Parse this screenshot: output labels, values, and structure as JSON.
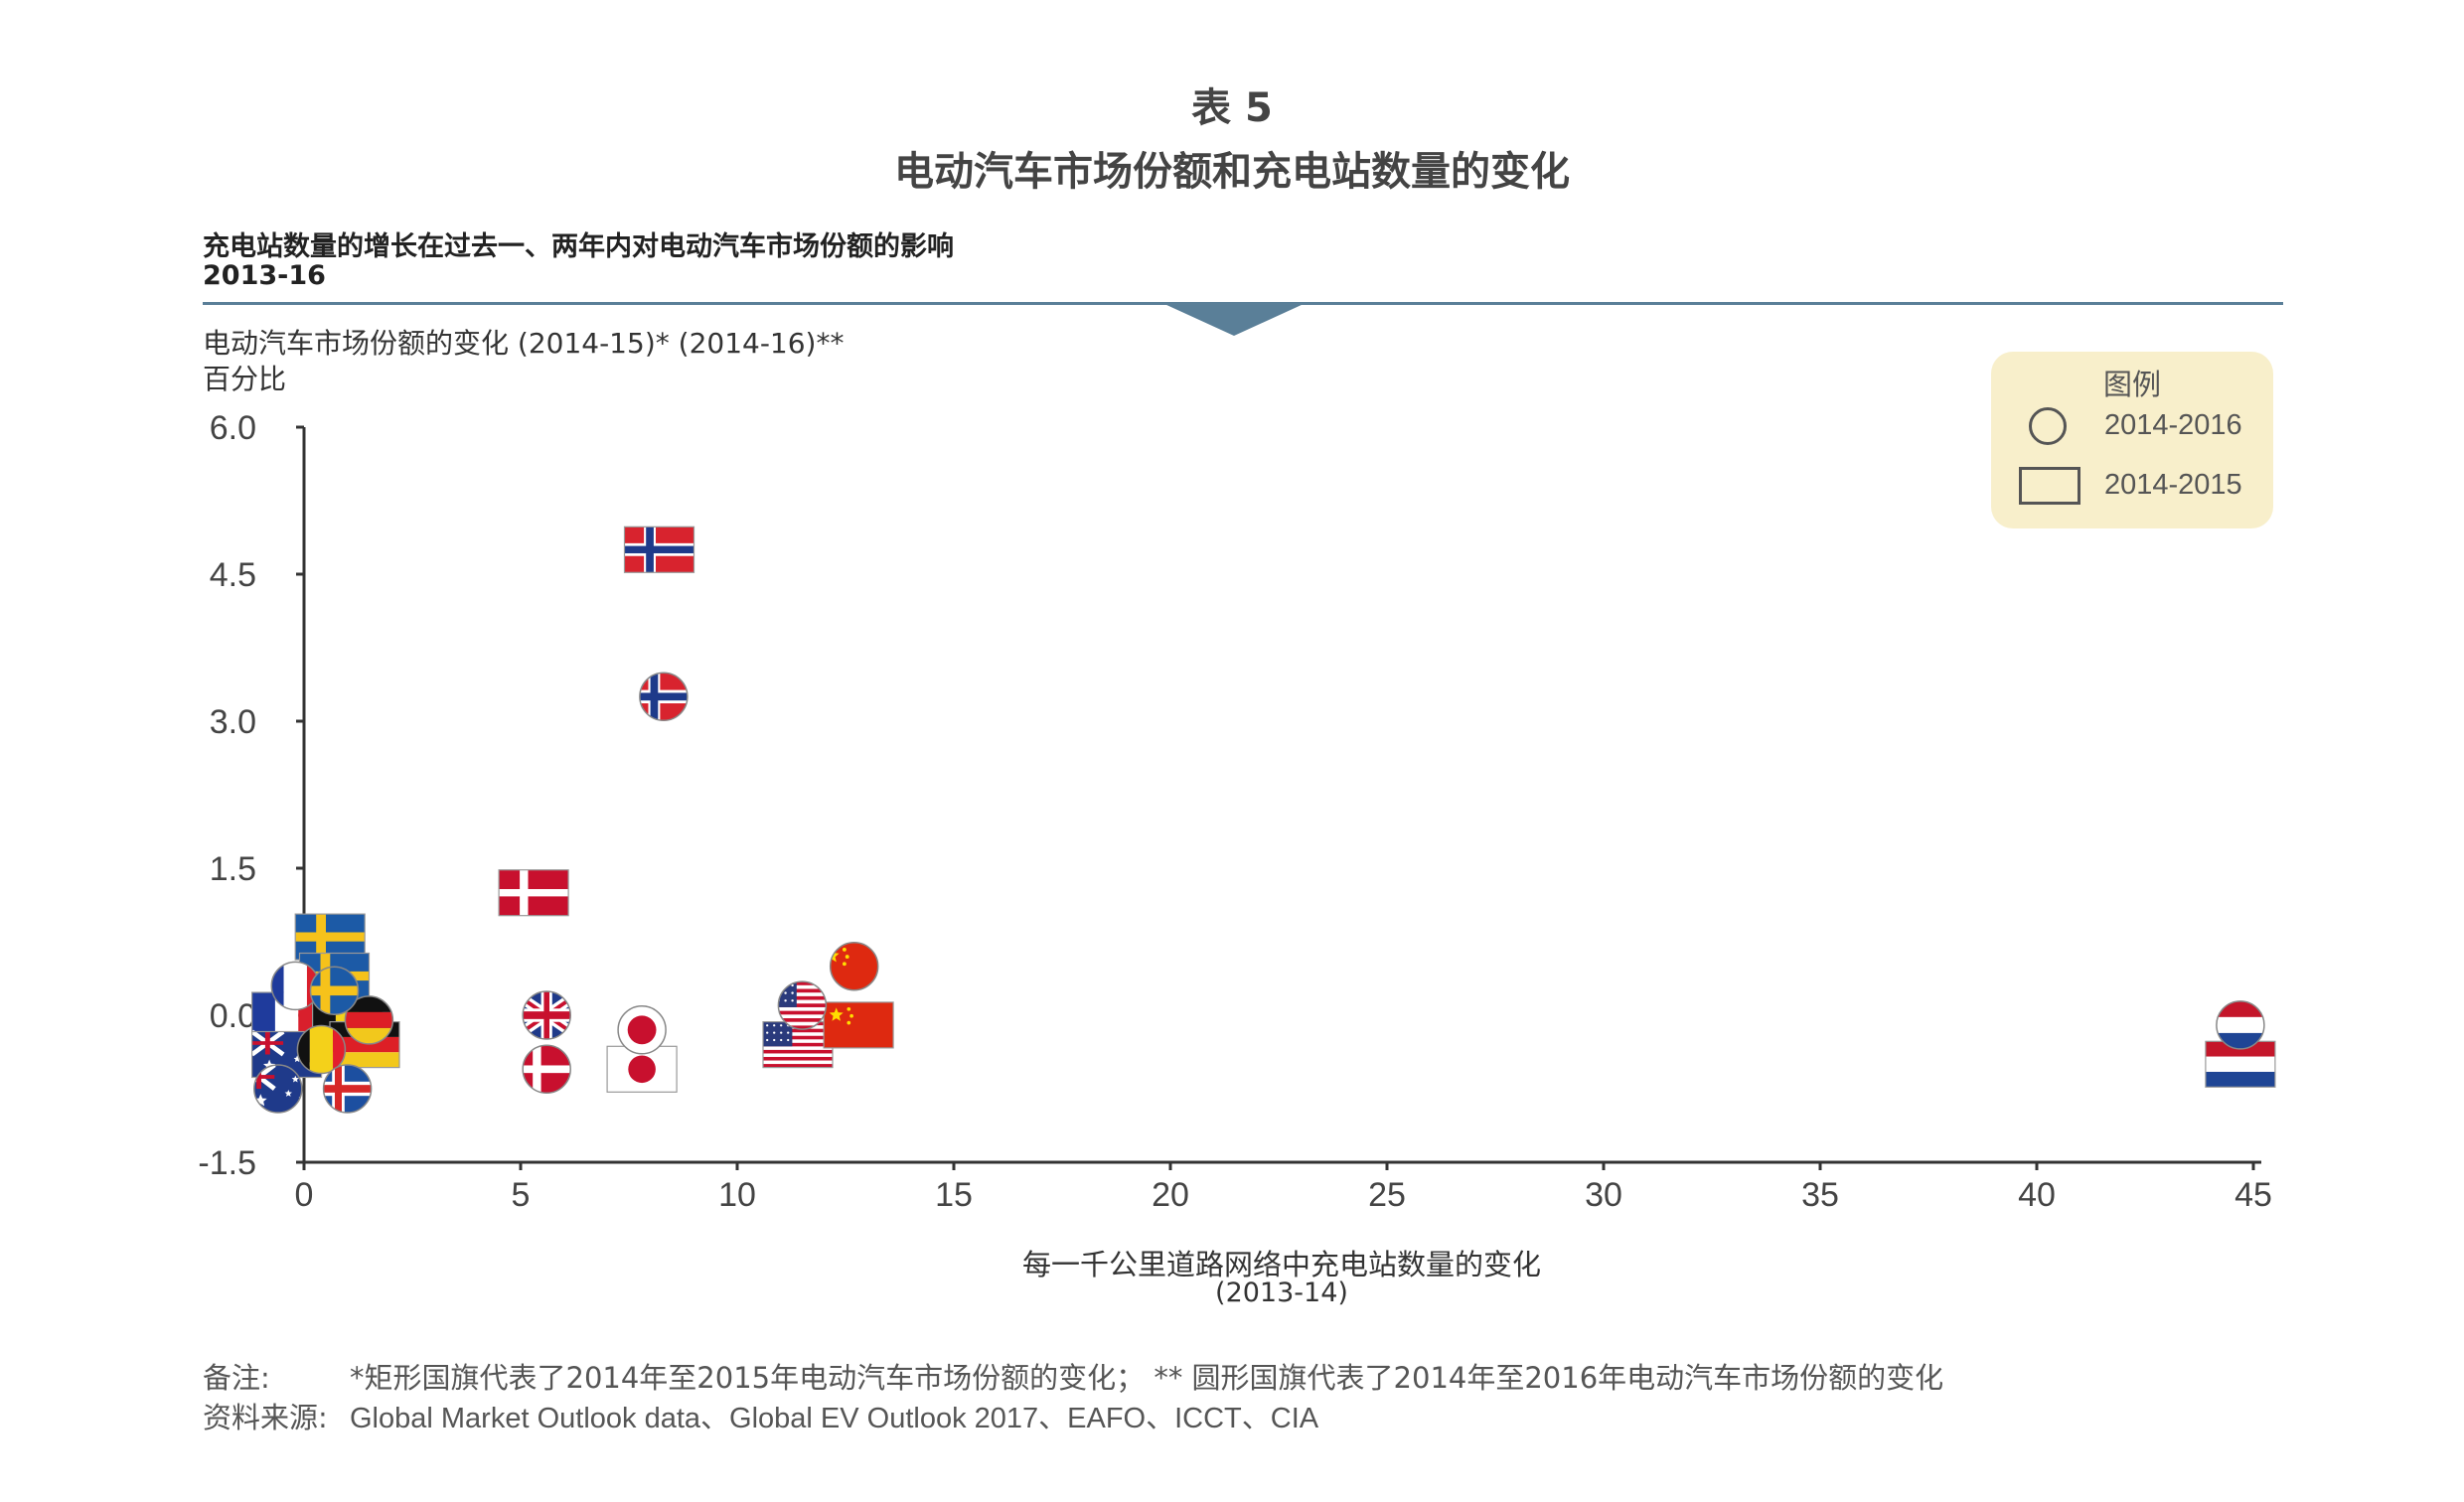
{
  "figure_label": "表 5",
  "figure_title": "电动汽车市场份额和充电站数量的变化",
  "subtitle": "充电站数量的增长在过去一、两年内对电动汽车市场份额的影响",
  "period": "2013-16",
  "y_axis_label_line1": "电动汽车市场份额的变化 (2014-15)* (2014-16)**",
  "y_axis_label_line2": "百分比",
  "x_axis_label_line1": "每一千公里道路网络中充电站数量的变化",
  "x_axis_label_line2": "(2013-14)",
  "legend": {
    "title": "图例",
    "circle_label": "2014-2016",
    "rect_label": "2014-2015"
  },
  "note_label": "备注:",
  "note_text": "*矩形国旗代表了2014年至2015年电动汽车市场份额的变化；  ** 圆形国旗代表了2014年至2016年电动汽车市场份额的变化",
  "source_label": "资料来源:",
  "source_text": "Global Market Outlook data、Global EV Outlook 2017、EAFO、ICCT、CIA",
  "chart_data": {
    "type": "scatter",
    "title": "电动汽车市场份额和充电站数量的变化",
    "xlabel": "每一千公里道路网络中充电站数量的变化 (2013-14)",
    "ylabel": "电动汽车市场份额的变化 (2014-15)* (2014-16)** 百分比",
    "xlim": [
      0,
      45
    ],
    "ylim": [
      -1.5,
      6.0
    ],
    "x_ticks": [
      "0",
      "5",
      "10",
      "15",
      "20",
      "25",
      "30",
      "35",
      "40",
      "45"
    ],
    "y_ticks": [
      "6.0",
      "4.5",
      "3.0",
      "1.5",
      "0.0",
      "-1.5"
    ],
    "x_tick_values": [
      0,
      5,
      10,
      15,
      20,
      25,
      30,
      35,
      40,
      45
    ],
    "y_tick_values": [
      6.0,
      4.5,
      3.0,
      1.5,
      0.0,
      -1.5
    ],
    "grid": false,
    "legend_position": "top-right",
    "marker_encoding": {
      "circle": "2014-2016",
      "rectangle": "2014-2015"
    },
    "series": [
      {
        "name": "2014-2015",
        "marker": "rectangle",
        "points": [
          {
            "flag": "norway",
            "x": 8.2,
            "y": 4.75
          },
          {
            "flag": "denmark",
            "x": 5.3,
            "y": 1.25
          },
          {
            "flag": "sweden",
            "x": 0.6,
            "y": 0.8
          },
          {
            "flag": "sweden",
            "x": 0.7,
            "y": 0.4
          },
          {
            "flag": "france",
            "x": -0.4,
            "y": 0.0
          },
          {
            "flag": "belgium",
            "x": 1.0,
            "y": -0.1
          },
          {
            "flag": "germany",
            "x": 1.4,
            "y": -0.3
          },
          {
            "flag": "australia",
            "x": -0.4,
            "y": -0.4
          },
          {
            "flag": "japan",
            "x": 7.8,
            "y": -0.55
          },
          {
            "flag": "usa",
            "x": 11.4,
            "y": -0.3
          },
          {
            "flag": "china",
            "x": 12.8,
            "y": -0.1
          },
          {
            "flag": "netherlands",
            "x": 44.7,
            "y": -0.5
          }
        ]
      },
      {
        "name": "2014-2016",
        "marker": "circle",
        "points": [
          {
            "flag": "norway",
            "x": 8.3,
            "y": 3.25
          },
          {
            "flag": "china",
            "x": 12.7,
            "y": 0.5
          },
          {
            "flag": "usa",
            "x": 11.5,
            "y": 0.1
          },
          {
            "flag": "uk",
            "x": 5.6,
            "y": 0.0
          },
          {
            "flag": "japan",
            "x": 7.8,
            "y": -0.15
          },
          {
            "flag": "denmark",
            "x": 5.6,
            "y": -0.55
          },
          {
            "flag": "netherlands",
            "x": 44.7,
            "y": -0.1
          },
          {
            "flag": "france",
            "x": -0.2,
            "y": 0.3
          },
          {
            "flag": "germany",
            "x": 1.5,
            "y": -0.05
          },
          {
            "flag": "belgium",
            "x": 0.4,
            "y": -0.35
          },
          {
            "flag": "australia",
            "x": -0.6,
            "y": -0.75
          },
          {
            "flag": "iceland",
            "x": 1.0,
            "y": -0.75
          },
          {
            "flag": "sweden",
            "x": 0.7,
            "y": 0.25
          }
        ]
      }
    ]
  }
}
